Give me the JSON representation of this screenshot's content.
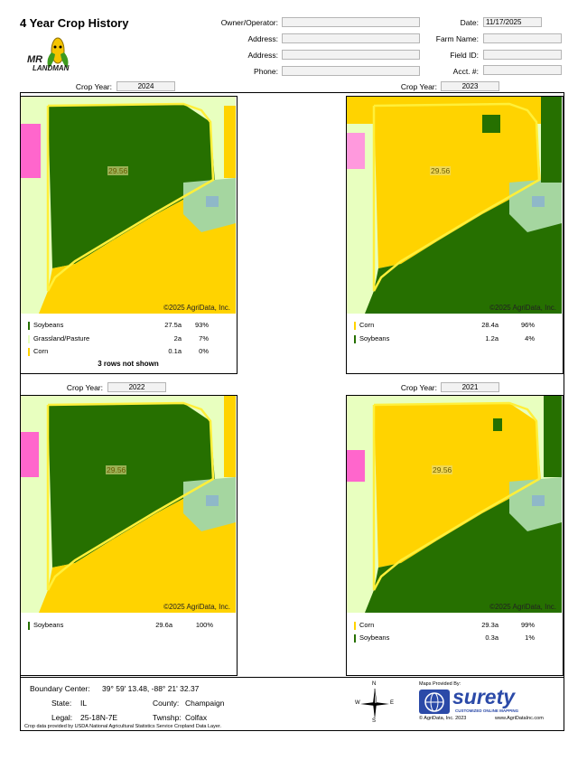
{
  "title": "4 Year Crop History",
  "logo": {
    "line1": "MR",
    "line2": "LANDMAN"
  },
  "header": {
    "owner_label": "Owner/Operator:",
    "owner_value": "",
    "address1_label": "Address:",
    "address1_value": "",
    "address2_label": "Address:",
    "address2_value": "",
    "phone_label": "Phone:",
    "phone_value": "",
    "date_label": "Date:",
    "date_value": "11/17/2025",
    "farm_label": "Farm Name:",
    "farm_value": "",
    "field_label": "Field ID:",
    "field_value": "",
    "acct_label": "Acct. #:",
    "acct_value": ""
  },
  "crop_year_label": "Crop Year:",
  "copyright": "©2025 AgriData, Inc.",
  "field_acres_label": "29.56",
  "panels": [
    {
      "year": "2024",
      "legend": [
        {
          "crop": "Soybeans",
          "acres": "27.5a",
          "pct": "93%",
          "color": "#267000"
        },
        {
          "crop": "Grassland/Pasture",
          "acres": "2a",
          "pct": "7%",
          "color": "#e8ffbf"
        },
        {
          "crop": "Corn",
          "acres": "0.1a",
          "pct": "0%",
          "color": "#ffd300"
        }
      ],
      "note": "3 rows not shown"
    },
    {
      "year": "2023",
      "legend": [
        {
          "crop": "Corn",
          "acres": "28.4a",
          "pct": "96%",
          "color": "#ffd300"
        },
        {
          "crop": "Soybeans",
          "acres": "1.2a",
          "pct": "4%",
          "color": "#267000"
        }
      ],
      "note": ""
    },
    {
      "year": "2022",
      "legend": [
        {
          "crop": "Soybeans",
          "acres": "29.6a",
          "pct": "100%",
          "color": "#267000"
        }
      ],
      "note": ""
    },
    {
      "year": "2021",
      "legend": [
        {
          "crop": "Corn",
          "acres": "29.3a",
          "pct": "99%",
          "color": "#ffd300"
        },
        {
          "crop": "Soybeans",
          "acres": "0.3a",
          "pct": "1%",
          "color": "#267000"
        }
      ],
      "note": ""
    }
  ],
  "footer": {
    "boundary_label": "Boundary Center:",
    "boundary_value": "39° 59' 13.48,  -88° 21' 32.37",
    "state_label": "State:",
    "state_value": "IL",
    "county_label": "County:",
    "county_value": "Champaign",
    "legal_label": "Legal:",
    "legal_value": "25-18N-7E",
    "twnshp_label": "Twnshp:",
    "twnshp_value": "Colfax",
    "source": "Crop data provided by USDA National Agricultural Statistics Service Cropland Data Layer.",
    "compass": {
      "n": "N",
      "s": "S",
      "e": "E",
      "w": "W"
    },
    "maps_provided": "Maps Provided By:",
    "brand": "surety",
    "brand_tag": "CUSTOMIZED ONLINE MAPPING",
    "brand_copy": "© AgriData, Inc. 2023",
    "brand_url": "www.AgriDataInc.com"
  }
}
